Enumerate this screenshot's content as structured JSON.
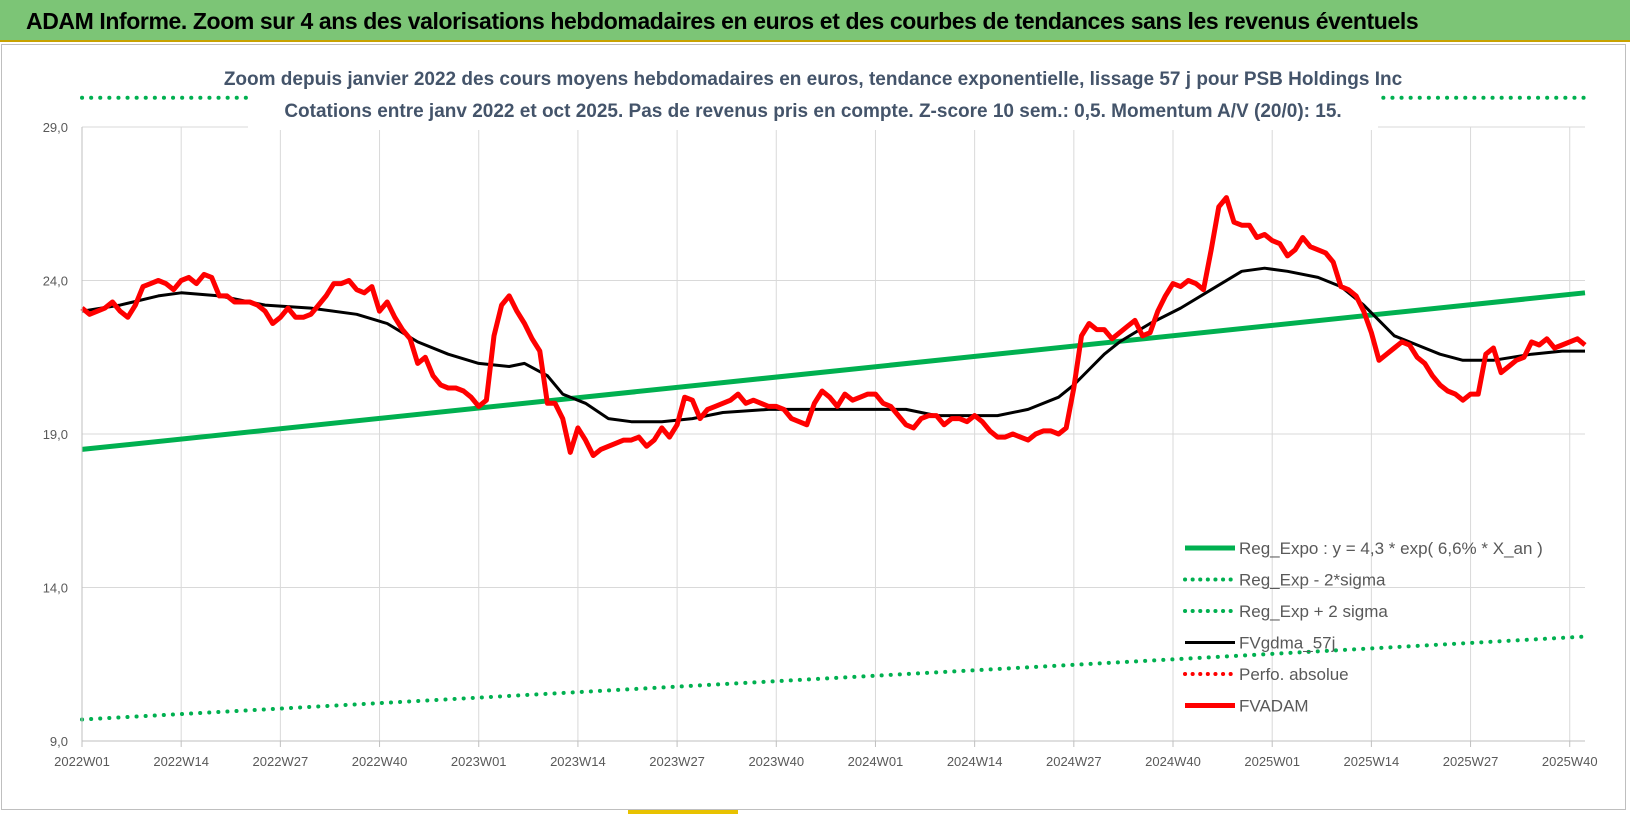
{
  "banner": {
    "text": "ADAM Informe. Zoom sur 4 ans des valorisations hebdomadaires en euros et des courbes de tendances sans les revenus éventuels"
  },
  "chart_data": {
    "type": "line",
    "title_lines": [
      "Zoom depuis janvier 2022 des cours moyens hebdomadaires en euros, tendance exponentielle, lissage 57 j pour PSB Holdings Inc",
      "Cotations entre janv 2022 et oct 2025. Pas de revenus pris en compte. Z-score 10 sem.: 0,5. Momentum A/V (20/0): 15."
    ],
    "ylim": [
      9,
      29
    ],
    "y_ticks": [
      {
        "v": 9,
        "label": "9,0"
      },
      {
        "v": 14,
        "label": "14,0"
      },
      {
        "v": 19,
        "label": "19,0"
      },
      {
        "v": 24,
        "label": "24,0"
      },
      {
        "v": 29,
        "label": "29,0"
      }
    ],
    "x_range": [
      0,
      197
    ],
    "x_ticks": [
      {
        "i": 0,
        "label": "2022W01"
      },
      {
        "i": 13,
        "label": "2022W14"
      },
      {
        "i": 26,
        "label": "2022W27"
      },
      {
        "i": 39,
        "label": "2022W40"
      },
      {
        "i": 52,
        "label": "2023W01"
      },
      {
        "i": 65,
        "label": "2023W14"
      },
      {
        "i": 78,
        "label": "2023W27"
      },
      {
        "i": 91,
        "label": "2023W40"
      },
      {
        "i": 104,
        "label": "2024W01"
      },
      {
        "i": 117,
        "label": "2024W14"
      },
      {
        "i": 130,
        "label": "2024W27"
      },
      {
        "i": 143,
        "label": "2024W40"
      },
      {
        "i": 156,
        "label": "2025W01"
      },
      {
        "i": 169,
        "label": "2025W14"
      },
      {
        "i": 182,
        "label": "2025W27"
      },
      {
        "i": 195,
        "label": "2025W40"
      }
    ],
    "grid": true,
    "legend_position": "bottom-right",
    "series": [
      {
        "name": "Reg_Expo : y = 4,3 * exp( 6,6% *  X_an )",
        "color": "#00b050",
        "style": "solid",
        "points": [
          [
            0,
            18.5
          ],
          [
            197,
            23.6
          ]
        ]
      },
      {
        "name": "Reg_Exp - 2*sigma",
        "color": "#00b050",
        "style": "dotted",
        "points": [
          [
            0,
            9.7
          ],
          [
            197,
            12.4
          ]
        ]
      },
      {
        "name": "Reg_Exp + 2 sigma",
        "color": "#00b050",
        "style": "dotted",
        "points": [
          [
            0,
            29.95
          ],
          [
            197,
            29.95
          ]
        ]
      },
      {
        "name": "FVgdma_57j",
        "color": "#000000",
        "style": "solid",
        "points": [
          [
            0,
            23.0
          ],
          [
            5,
            23.2
          ],
          [
            10,
            23.5
          ],
          [
            13,
            23.6
          ],
          [
            18,
            23.5
          ],
          [
            24,
            23.2
          ],
          [
            30,
            23.1
          ],
          [
            36,
            22.9
          ],
          [
            40,
            22.6
          ],
          [
            44,
            22.0
          ],
          [
            48,
            21.6
          ],
          [
            52,
            21.3
          ],
          [
            56,
            21.2
          ],
          [
            58,
            21.3
          ],
          [
            61,
            20.9
          ],
          [
            63,
            20.3
          ],
          [
            66,
            20.0
          ],
          [
            69,
            19.5
          ],
          [
            72,
            19.4
          ],
          [
            76,
            19.4
          ],
          [
            80,
            19.5
          ],
          [
            84,
            19.7
          ],
          [
            90,
            19.8
          ],
          [
            96,
            19.8
          ],
          [
            100,
            19.8
          ],
          [
            104,
            19.8
          ],
          [
            108,
            19.8
          ],
          [
            112,
            19.6
          ],
          [
            116,
            19.6
          ],
          [
            120,
            19.6
          ],
          [
            124,
            19.8
          ],
          [
            128,
            20.2
          ],
          [
            130,
            20.6
          ],
          [
            132,
            21.1
          ],
          [
            134,
            21.6
          ],
          [
            136,
            22.0
          ],
          [
            140,
            22.6
          ],
          [
            144,
            23.1
          ],
          [
            148,
            23.7
          ],
          [
            152,
            24.3
          ],
          [
            155,
            24.4
          ],
          [
            158,
            24.3
          ],
          [
            162,
            24.1
          ],
          [
            165,
            23.8
          ],
          [
            168,
            23.2
          ],
          [
            170,
            22.7
          ],
          [
            172,
            22.2
          ],
          [
            175,
            21.9
          ],
          [
            178,
            21.6
          ],
          [
            181,
            21.4
          ],
          [
            185,
            21.4
          ],
          [
            190,
            21.6
          ],
          [
            194,
            21.7
          ],
          [
            197,
            21.7
          ]
        ]
      },
      {
        "name": "Perfo. absolue",
        "color": "#ff0000",
        "style": "dotted",
        "points": []
      },
      {
        "name": "FVADAM",
        "color": "#ff0000",
        "style": "solid",
        "points": [
          [
            0,
            23.1
          ],
          [
            1,
            22.9
          ],
          [
            2,
            23.0
          ],
          [
            3,
            23.1
          ],
          [
            4,
            23.3
          ],
          [
            5,
            23.0
          ],
          [
            6,
            22.8
          ],
          [
            7,
            23.2
          ],
          [
            8,
            23.8
          ],
          [
            9,
            23.9
          ],
          [
            10,
            24.0
          ],
          [
            11,
            23.9
          ],
          [
            12,
            23.7
          ],
          [
            13,
            24.0
          ],
          [
            14,
            24.1
          ],
          [
            15,
            23.9
          ],
          [
            16,
            24.2
          ],
          [
            17,
            24.1
          ],
          [
            18,
            23.5
          ],
          [
            19,
            23.5
          ],
          [
            20,
            23.3
          ],
          [
            21,
            23.3
          ],
          [
            22,
            23.3
          ],
          [
            23,
            23.2
          ],
          [
            24,
            23.0
          ],
          [
            25,
            22.6
          ],
          [
            26,
            22.8
          ],
          [
            27,
            23.1
          ],
          [
            28,
            22.8
          ],
          [
            29,
            22.8
          ],
          [
            30,
            22.9
          ],
          [
            31,
            23.2
          ],
          [
            32,
            23.5
          ],
          [
            33,
            23.9
          ],
          [
            34,
            23.9
          ],
          [
            35,
            24.0
          ],
          [
            36,
            23.7
          ],
          [
            37,
            23.6
          ],
          [
            38,
            23.8
          ],
          [
            39,
            23.0
          ],
          [
            40,
            23.3
          ],
          [
            41,
            22.8
          ],
          [
            42,
            22.4
          ],
          [
            43,
            22.1
          ],
          [
            44,
            21.3
          ],
          [
            45,
            21.5
          ],
          [
            46,
            20.9
          ],
          [
            47,
            20.6
          ],
          [
            48,
            20.5
          ],
          [
            49,
            20.5
          ],
          [
            50,
            20.4
          ],
          [
            51,
            20.2
          ],
          [
            52,
            19.9
          ],
          [
            53,
            20.1
          ],
          [
            54,
            22.2
          ],
          [
            55,
            23.2
          ],
          [
            56,
            23.5
          ],
          [
            57,
            23.0
          ],
          [
            58,
            22.6
          ],
          [
            59,
            22.1
          ],
          [
            60,
            21.7
          ],
          [
            61,
            20.0
          ],
          [
            62,
            20.0
          ],
          [
            63,
            19.5
          ],
          [
            64,
            18.4
          ],
          [
            65,
            19.2
          ],
          [
            66,
            18.8
          ],
          [
            67,
            18.3
          ],
          [
            68,
            18.5
          ],
          [
            69,
            18.6
          ],
          [
            70,
            18.7
          ],
          [
            71,
            18.8
          ],
          [
            72,
            18.8
          ],
          [
            73,
            18.9
          ],
          [
            74,
            18.6
          ],
          [
            75,
            18.8
          ],
          [
            76,
            19.2
          ],
          [
            77,
            18.9
          ],
          [
            78,
            19.3
          ],
          [
            79,
            20.2
          ],
          [
            80,
            20.1
          ],
          [
            81,
            19.5
          ],
          [
            82,
            19.8
          ],
          [
            83,
            19.9
          ],
          [
            84,
            20.0
          ],
          [
            85,
            20.1
          ],
          [
            86,
            20.3
          ],
          [
            87,
            20.0
          ],
          [
            88,
            20.1
          ],
          [
            89,
            20.0
          ],
          [
            90,
            19.9
          ],
          [
            91,
            19.9
          ],
          [
            92,
            19.8
          ],
          [
            93,
            19.5
          ],
          [
            94,
            19.4
          ],
          [
            95,
            19.3
          ],
          [
            96,
            20.0
          ],
          [
            97,
            20.4
          ],
          [
            98,
            20.2
          ],
          [
            99,
            19.9
          ],
          [
            100,
            20.3
          ],
          [
            101,
            20.1
          ],
          [
            102,
            20.2
          ],
          [
            103,
            20.3
          ],
          [
            104,
            20.3
          ],
          [
            105,
            20.0
          ],
          [
            106,
            19.9
          ],
          [
            107,
            19.6
          ],
          [
            108,
            19.3
          ],
          [
            109,
            19.2
          ],
          [
            110,
            19.5
          ],
          [
            111,
            19.6
          ],
          [
            112,
            19.6
          ],
          [
            113,
            19.3
          ],
          [
            114,
            19.5
          ],
          [
            115,
            19.5
          ],
          [
            116,
            19.4
          ],
          [
            117,
            19.6
          ],
          [
            118,
            19.4
          ],
          [
            119,
            19.1
          ],
          [
            120,
            18.9
          ],
          [
            121,
            18.9
          ],
          [
            122,
            19.0
          ],
          [
            123,
            18.9
          ],
          [
            124,
            18.8
          ],
          [
            125,
            19.0
          ],
          [
            126,
            19.1
          ],
          [
            127,
            19.1
          ],
          [
            128,
            19.0
          ],
          [
            129,
            19.2
          ],
          [
            130,
            20.5
          ],
          [
            131,
            22.2
          ],
          [
            132,
            22.6
          ],
          [
            133,
            22.4
          ],
          [
            134,
            22.4
          ],
          [
            135,
            22.1
          ],
          [
            136,
            22.3
          ],
          [
            137,
            22.5
          ],
          [
            138,
            22.7
          ],
          [
            139,
            22.2
          ],
          [
            140,
            22.3
          ],
          [
            141,
            23.0
          ],
          [
            142,
            23.5
          ],
          [
            143,
            23.9
          ],
          [
            144,
            23.8
          ],
          [
            145,
            24.0
          ],
          [
            146,
            23.9
          ],
          [
            147,
            23.7
          ],
          [
            148,
            25.0
          ],
          [
            149,
            26.4
          ],
          [
            150,
            26.7
          ],
          [
            151,
            25.9
          ],
          [
            152,
            25.8
          ],
          [
            153,
            25.8
          ],
          [
            154,
            25.4
          ],
          [
            155,
            25.5
          ],
          [
            156,
            25.3
          ],
          [
            157,
            25.2
          ],
          [
            158,
            24.8
          ],
          [
            159,
            25.0
          ],
          [
            160,
            25.4
          ],
          [
            161,
            25.1
          ],
          [
            162,
            25.0
          ],
          [
            163,
            24.9
          ],
          [
            164,
            24.6
          ],
          [
            165,
            23.8
          ],
          [
            166,
            23.7
          ],
          [
            167,
            23.5
          ],
          [
            168,
            23.0
          ],
          [
            169,
            22.3
          ],
          [
            170,
            21.4
          ],
          [
            171,
            21.6
          ],
          [
            172,
            21.8
          ],
          [
            173,
            22.0
          ],
          [
            174,
            21.9
          ],
          [
            175,
            21.5
          ],
          [
            176,
            21.3
          ],
          [
            177,
            20.9
          ],
          [
            178,
            20.6
          ],
          [
            179,
            20.4
          ],
          [
            180,
            20.3
          ],
          [
            181,
            20.1
          ],
          [
            182,
            20.3
          ],
          [
            183,
            20.3
          ],
          [
            184,
            21.6
          ],
          [
            185,
            21.8
          ],
          [
            186,
            21.0
          ],
          [
            187,
            21.2
          ],
          [
            188,
            21.4
          ],
          [
            189,
            21.5
          ],
          [
            190,
            22.0
          ],
          [
            191,
            21.9
          ],
          [
            192,
            22.1
          ],
          [
            193,
            21.8
          ],
          [
            194,
            21.9
          ],
          [
            195,
            22.0
          ],
          [
            196,
            22.1
          ],
          [
            197,
            21.9
          ]
        ]
      }
    ]
  }
}
